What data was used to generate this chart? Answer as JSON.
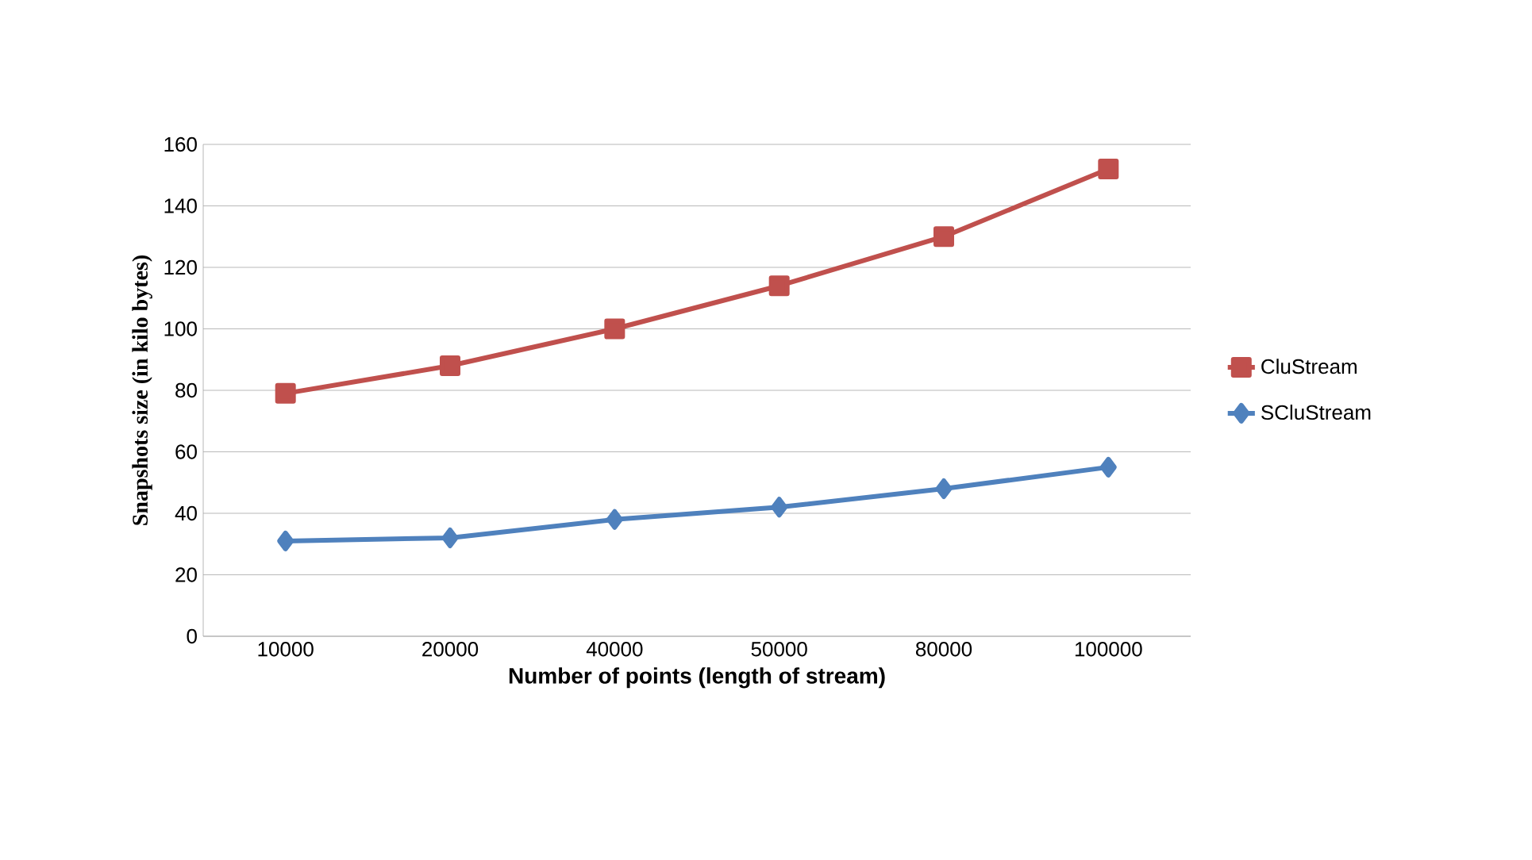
{
  "chart_data": {
    "type": "line",
    "xlabel": "Number of points (length of stream)",
    "ylabel": "Snapshots size (in kilo bytes)",
    "categories": [
      "10000",
      "20000",
      "40000",
      "50000",
      "80000",
      "100000"
    ],
    "series": [
      {
        "name": "CluStream",
        "color": "#c0504d",
        "marker": "square",
        "values": [
          79,
          88,
          100,
          114,
          130,
          152
        ]
      },
      {
        "name": "SCluStream",
        "color": "#4f81bd",
        "marker": "diamond",
        "values": [
          31,
          32,
          38,
          42,
          48,
          55
        ]
      }
    ],
    "ylim": [
      0,
      160
    ],
    "yticks": [
      0,
      20,
      40,
      60,
      80,
      100,
      120,
      140,
      160
    ],
    "grid": "y",
    "legend": "right"
  }
}
